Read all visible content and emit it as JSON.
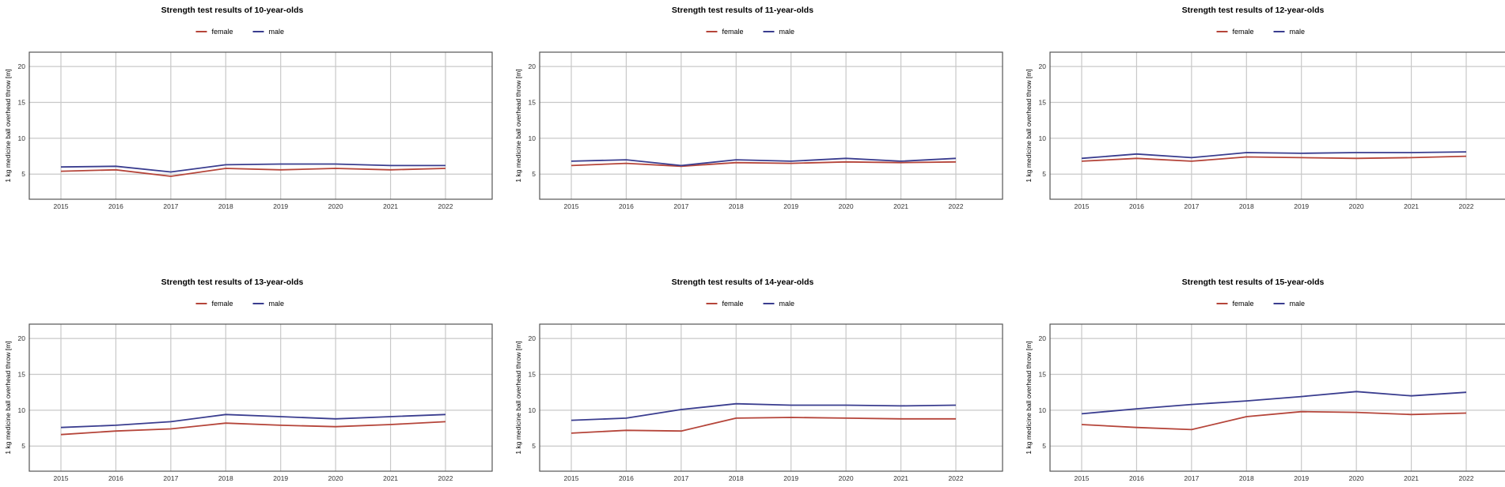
{
  "colors": {
    "female": "#b5453a",
    "male": "#3a3d8f",
    "grid": "#c8c8c8",
    "frame": "#555555"
  },
  "legend": {
    "female": "female",
    "male": "male"
  },
  "chart_data": [
    {
      "type": "line",
      "title": "Strength test results of 10-year-olds",
      "ylabel": "1 kg medicine ball overhead throw [m]",
      "xlabel": "",
      "x": [
        "2015",
        "2016",
        "2017",
        "2018",
        "2019",
        "2020",
        "2021",
        "2022"
      ],
      "y_ticks": [
        "5",
        "10",
        "15",
        "20"
      ],
      "ylim": [
        1.5,
        22
      ],
      "grid": true,
      "legend_position": "top",
      "series": [
        {
          "name": "female",
          "color": "#b5453a",
          "values": [
            5.4,
            5.6,
            4.7,
            5.8,
            5.6,
            5.8,
            5.6,
            5.8
          ]
        },
        {
          "name": "male",
          "color": "#3a3d8f",
          "values": [
            6.0,
            6.1,
            5.3,
            6.3,
            6.4,
            6.4,
            6.2,
            6.2
          ]
        }
      ]
    },
    {
      "type": "line",
      "title": "Strength test results of 11-year-olds",
      "ylabel": "1 kg medicine ball overhead throw [m]",
      "xlabel": "",
      "x": [
        "2015",
        "2016",
        "2017",
        "2018",
        "2019",
        "2020",
        "2021",
        "2022"
      ],
      "y_ticks": [
        "5",
        "10",
        "15",
        "20"
      ],
      "ylim": [
        1.5,
        22
      ],
      "grid": true,
      "legend_position": "top",
      "series": [
        {
          "name": "female",
          "color": "#b5453a",
          "values": [
            6.2,
            6.5,
            6.1,
            6.6,
            6.5,
            6.7,
            6.6,
            6.7
          ]
        },
        {
          "name": "male",
          "color": "#3a3d8f",
          "values": [
            6.8,
            7.0,
            6.2,
            7.0,
            6.8,
            7.2,
            6.8,
            7.2
          ]
        }
      ]
    },
    {
      "type": "line",
      "title": "Strength test results of 12-year-olds",
      "ylabel": "1 kg medicine ball overhead throw [m]",
      "xlabel": "",
      "x": [
        "2015",
        "2016",
        "2017",
        "2018",
        "2019",
        "2020",
        "2021",
        "2022"
      ],
      "y_ticks": [
        "5",
        "10",
        "15",
        "20"
      ],
      "ylim": [
        1.5,
        22
      ],
      "grid": true,
      "legend_position": "top",
      "series": [
        {
          "name": "female",
          "color": "#b5453a",
          "values": [
            6.8,
            7.2,
            6.8,
            7.4,
            7.3,
            7.2,
            7.3,
            7.5
          ]
        },
        {
          "name": "male",
          "color": "#3a3d8f",
          "values": [
            7.2,
            7.8,
            7.3,
            8.0,
            7.9,
            8.0,
            8.0,
            8.1
          ]
        }
      ]
    },
    {
      "type": "line",
      "title": "Strength test results of 13-year-olds",
      "ylabel": "1 kg medicine ball overhead throw [m]",
      "xlabel": "",
      "x": [
        "2015",
        "2016",
        "2017",
        "2018",
        "2019",
        "2020",
        "2021",
        "2022"
      ],
      "y_ticks": [
        "5",
        "10",
        "15",
        "20"
      ],
      "ylim": [
        1.5,
        22
      ],
      "grid": true,
      "legend_position": "top",
      "series": [
        {
          "name": "female",
          "color": "#b5453a",
          "values": [
            6.6,
            7.1,
            7.4,
            8.2,
            7.9,
            7.7,
            8.0,
            8.4
          ]
        },
        {
          "name": "male",
          "color": "#3a3d8f",
          "values": [
            7.6,
            7.9,
            8.4,
            9.4,
            9.1,
            8.8,
            9.1,
            9.4
          ]
        }
      ]
    },
    {
      "type": "line",
      "title": "Strength test results of 14-year-olds",
      "ylabel": "1 kg medicine ball overhead throw [m]",
      "xlabel": "",
      "x": [
        "2015",
        "2016",
        "2017",
        "2018",
        "2019",
        "2020",
        "2021",
        "2022"
      ],
      "y_ticks": [
        "5",
        "10",
        "15",
        "20"
      ],
      "ylim": [
        1.5,
        22
      ],
      "grid": true,
      "legend_position": "top",
      "series": [
        {
          "name": "female",
          "color": "#b5453a",
          "values": [
            6.8,
            7.2,
            7.1,
            8.9,
            9.0,
            8.9,
            8.8,
            8.8
          ]
        },
        {
          "name": "male",
          "color": "#3a3d8f",
          "values": [
            8.6,
            8.9,
            10.1,
            10.9,
            10.7,
            10.7,
            10.6,
            10.7
          ]
        }
      ]
    },
    {
      "type": "line",
      "title": "Strength test results of 15-year-olds",
      "ylabel": "1 kg medicine ball overhead throw [m]",
      "xlabel": "",
      "x": [
        "2015",
        "2016",
        "2017",
        "2018",
        "2019",
        "2020",
        "2021",
        "2022"
      ],
      "y_ticks": [
        "5",
        "10",
        "15",
        "20"
      ],
      "ylim": [
        1.5,
        22
      ],
      "grid": true,
      "legend_position": "top",
      "series": [
        {
          "name": "female",
          "color": "#b5453a",
          "values": [
            8.0,
            7.6,
            7.3,
            9.1,
            9.8,
            9.7,
            9.4,
            9.6
          ]
        },
        {
          "name": "male",
          "color": "#3a3d8f",
          "values": [
            9.5,
            10.2,
            10.8,
            11.3,
            11.9,
            12.6,
            12.0,
            12.5
          ]
        }
      ]
    }
  ]
}
